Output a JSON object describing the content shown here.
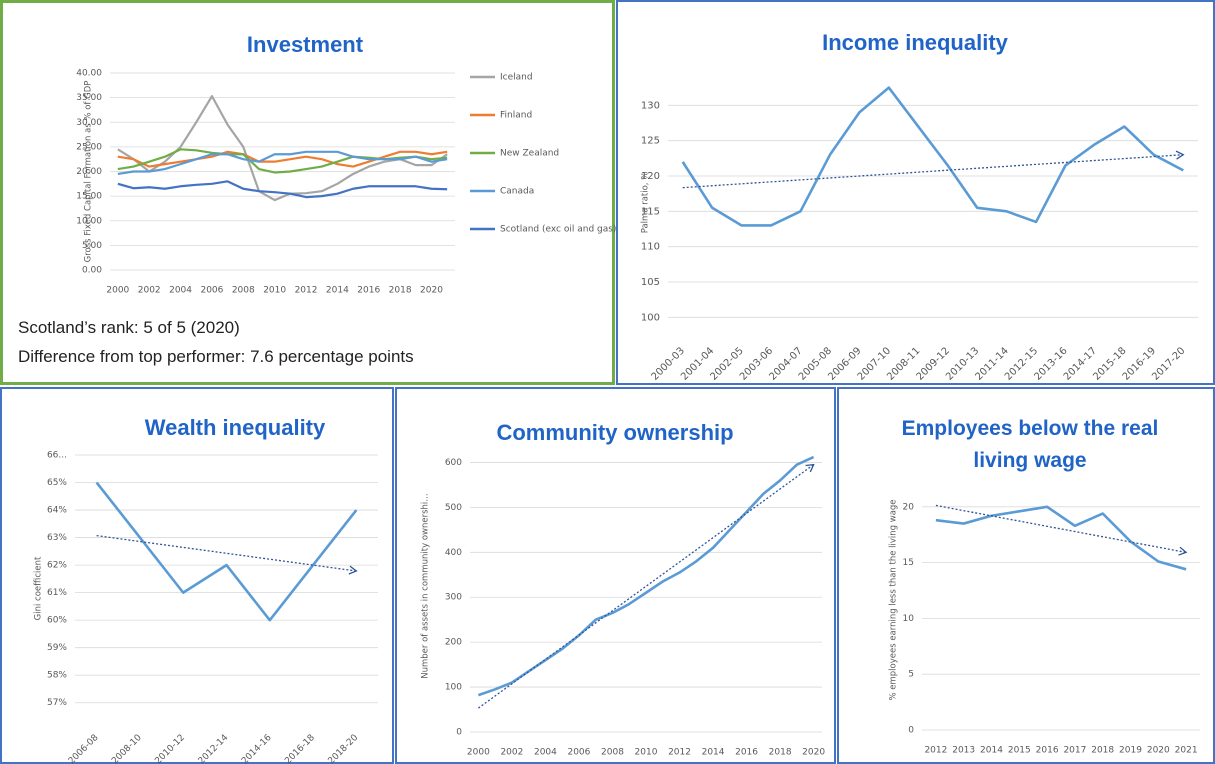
{
  "chart_data": [
    {
      "type": "line",
      "title": "Investment",
      "y_label": "Gross Fixed Capital Formation as % of GDP",
      "notes": [
        "Scotland’s rank: 5 of 5 (2020)",
        "Difference from top performer: 7.6 percentage points"
      ],
      "x": [
        2000,
        2001,
        2002,
        2003,
        2004,
        2005,
        2006,
        2007,
        2008,
        2009,
        2010,
        2011,
        2012,
        2013,
        2014,
        2015,
        2016,
        2017,
        2018,
        2019,
        2020,
        2021
      ],
      "xlim": [
        1999.5,
        2021.5
      ],
      "xticks": [
        2000,
        2002,
        2004,
        2006,
        2008,
        2010,
        2012,
        2014,
        2016,
        2018,
        2020
      ],
      "ylim": [
        0,
        40
      ],
      "yticks": [
        {
          "value": 0,
          "label": "0.00"
        },
        {
          "value": 5,
          "label": "5.00"
        },
        {
          "value": 10,
          "label": "10.00"
        },
        {
          "value": 15,
          "label": "15.00"
        },
        {
          "value": 20,
          "label": "20.00"
        },
        {
          "value": 25,
          "label": "25.00"
        },
        {
          "value": 30,
          "label": "30.00"
        },
        {
          "value": 35,
          "label": "35.00"
        },
        {
          "value": 40,
          "label": "40.00"
        }
      ],
      "legend": "right",
      "series": [
        {
          "name": "Iceland",
          "color": "#a5a5a5",
          "values": [
            24.5,
            22.5,
            20,
            22,
            25,
            30,
            35.3,
            29.5,
            25,
            16,
            14.2,
            15.5,
            15.6,
            16,
            17.5,
            19.5,
            21,
            22,
            22.5,
            21.3,
            21.3,
            23.5
          ]
        },
        {
          "name": "Finland",
          "color": "#ed7d31",
          "values": [
            23,
            22.5,
            21,
            21.5,
            22,
            22.5,
            23,
            24,
            23.5,
            22,
            22,
            22.5,
            23,
            22.5,
            21.5,
            21,
            22,
            23,
            24,
            24,
            23.5,
            24
          ]
        },
        {
          "name": "New Zealand",
          "color": "#70ad47",
          "values": [
            20.5,
            21,
            22,
            23,
            24.5,
            24.3,
            23.8,
            23.5,
            23.5,
            20.5,
            19.8,
            20,
            20.5,
            21,
            22,
            23,
            22.8,
            22.5,
            22.8,
            23,
            22.5,
            22.8
          ]
        },
        {
          "name": "Canada",
          "color": "#5b9bd5",
          "values": [
            19.5,
            20,
            20,
            20.5,
            21.5,
            22.5,
            23.5,
            23.5,
            22.5,
            22,
            23.5,
            23.5,
            24,
            24,
            24,
            23,
            22.5,
            22.5,
            22.5,
            23,
            22,
            22.5
          ]
        },
        {
          "name": "Scotland (exc oil and gas)",
          "color": "#4472c4",
          "values": [
            17.5,
            16.6,
            16.8,
            16.5,
            17,
            17.3,
            17.5,
            18,
            16.5,
            16,
            15.8,
            15.5,
            14.8,
            15,
            15.5,
            16.5,
            17,
            17,
            17,
            17,
            16.5,
            16.4
          ]
        }
      ]
    },
    {
      "type": "line",
      "title": "Income inequality",
      "y_label": "Palma ratio, %",
      "trendline": true,
      "color": "#5b9bd5",
      "categories": [
        "2000-03",
        "2001-04",
        "2002-05",
        "2003-06",
        "2004-07",
        "2005-08",
        "2006-09",
        "2007-10",
        "2008-11",
        "2009-12",
        "2010-13",
        "2011-14",
        "2012-15",
        "2013-16",
        "2014-17",
        "2015-18",
        "2016-19",
        "2017-20"
      ],
      "values": [
        122,
        115.5,
        113,
        113,
        115,
        123,
        129,
        132.5,
        127,
        121.5,
        115.5,
        115,
        113.5,
        121.5,
        124.5,
        127,
        123,
        120.8
      ],
      "ylim": [
        97.5,
        135
      ],
      "yticks": [
        100,
        105,
        110,
        115,
        120,
        125,
        130
      ]
    },
    {
      "type": "line",
      "title": "Wealth inequality",
      "y_label": "Gini coefficient",
      "trendline": true,
      "color": "#5b9bd5",
      "categories": [
        "2006-08",
        "2008-10",
        "2010-12",
        "2012-14",
        "2014-16",
        "2016-18",
        "2018-20"
      ],
      "values": [
        65,
        63,
        61,
        62,
        60,
        62,
        64
      ],
      "ylim": [
        56.3,
        66
      ],
      "yticks": [
        {
          "value": 57,
          "label": "57%"
        },
        {
          "value": 58,
          "label": "58%"
        },
        {
          "value": 59,
          "label": "59%"
        },
        {
          "value": 60,
          "label": "60%"
        },
        {
          "value": 61,
          "label": "61%"
        },
        {
          "value": 62,
          "label": "62%"
        },
        {
          "value": 63,
          "label": "63%"
        },
        {
          "value": 64,
          "label": "64%"
        },
        {
          "value": 65,
          "label": "65%"
        },
        {
          "value": 66,
          "label": "66..."
        }
      ]
    },
    {
      "type": "line",
      "title": "Community ownership",
      "y_label": "Number of assets in community ownershi…",
      "trendline": true,
      "color": "#5b9bd5",
      "x": [
        2000,
        2001,
        2002,
        2003,
        2004,
        2005,
        2006,
        2007,
        2008,
        2009,
        2010,
        2011,
        2012,
        2013,
        2014,
        2015,
        2016,
        2017,
        2018,
        2019,
        2020
      ],
      "xlim": [
        1999.5,
        2020.5
      ],
      "xticks": [
        2000,
        2002,
        2004,
        2006,
        2008,
        2010,
        2012,
        2014,
        2016,
        2018,
        2020
      ],
      "values": [
        82,
        95,
        110,
        135,
        160,
        185,
        215,
        250,
        265,
        285,
        310,
        335,
        355,
        380,
        410,
        450,
        490,
        530,
        560,
        595,
        612
      ],
      "ylim": [
        0,
        650
      ],
      "yticks": [
        0,
        100,
        200,
        300,
        400,
        500,
        600
      ]
    },
    {
      "type": "line",
      "title": "Employees below the real living wage",
      "y_label": "% employees earning less than the living wage",
      "trendline": true,
      "color": "#5b9bd5",
      "categories": [
        "2012",
        "2013",
        "2014",
        "2015",
        "2016",
        "2017",
        "2018",
        "2019",
        "2020",
        "2021"
      ],
      "values": [
        18.8,
        18.5,
        19.2,
        19.6,
        20,
        18.3,
        19.4,
        16.9,
        15.1,
        14.4
      ],
      "ylim": [
        0,
        23.3
      ],
      "yticks": [
        0,
        5,
        10,
        15,
        20
      ]
    }
  ]
}
